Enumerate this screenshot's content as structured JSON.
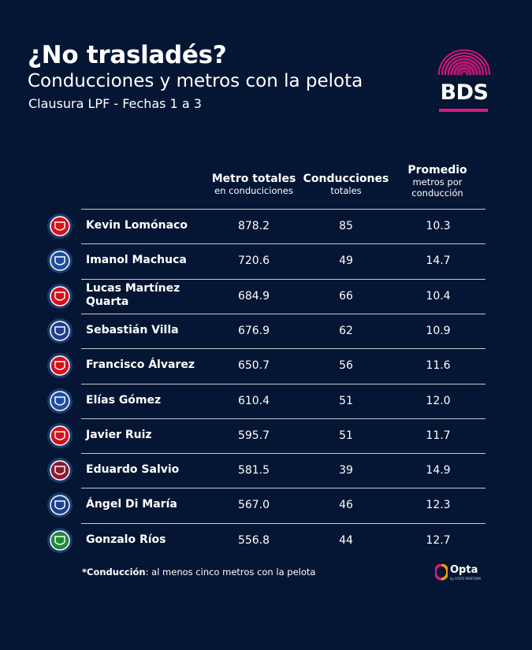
{
  "header": {
    "title": "¿No trasladés?",
    "subtitle": "Conducciones y metros con la pelota",
    "caption": "Clausura LPF - Fechas 1 a 3"
  },
  "brand": {
    "logo_text": "BDS",
    "accent": "#e0187f"
  },
  "columns": [
    {
      "title": "Metro totales",
      "sub1": "en conduciciones",
      "sub2": ""
    },
    {
      "title": "Conducciones",
      "sub1": "totales",
      "sub2": ""
    },
    {
      "title": "Promedio",
      "sub1": "metros por",
      "sub2": "conducción"
    }
  ],
  "chart_data": {
    "type": "table",
    "columns": [
      "Metro totales en conduciciones",
      "Conducciones totales",
      "Promedio metros por conducción"
    ],
    "rows": [
      {
        "player": [
          "Kevin Lomónaco"
        ],
        "meters": "878.2",
        "carries": "85",
        "avg": "10.3",
        "badge": "independiente-badge-icon",
        "color": "#d2121b"
      },
      {
        "player": [
          "Imanol Machuca"
        ],
        "meters": "720.6",
        "carries": "49",
        "avg": "14.7",
        "badge": "velez-badge-icon",
        "color": "#1d4fa0"
      },
      {
        "player": [
          "Lucas Martínez",
          "Quarta"
        ],
        "meters": "684.9",
        "carries": "66",
        "avg": "10.4",
        "badge": "river-plate-badge-icon",
        "color": "#d2121b"
      },
      {
        "player": [
          "Sebastián Villa"
        ],
        "meters": "676.9",
        "carries": "62",
        "avg": "10.9",
        "badge": "independiente-rivadavia-badge-icon",
        "color": "#1d3f8f"
      },
      {
        "player": [
          "Francisco Álvarez"
        ],
        "meters": "650.7",
        "carries": "56",
        "avg": "11.6",
        "badge": "argentinos-juniors-badge-icon",
        "color": "#d2121b"
      },
      {
        "player": [
          "Elías Gómez"
        ],
        "meters": "610.4",
        "carries": "51",
        "avg": "12.0",
        "badge": "velez-badge-icon",
        "color": "#1d4fa0"
      },
      {
        "player": [
          "Javier Ruiz"
        ],
        "meters": "595.7",
        "carries": "51",
        "avg": "11.7",
        "badge": "barracas-central-badge-icon",
        "color": "#d2121b"
      },
      {
        "player": [
          "Eduardo Salvio"
        ],
        "meters": "581.5",
        "carries": "39",
        "avg": "14.9",
        "badge": "lanus-badge-icon",
        "color": "#8c1a2e"
      },
      {
        "player": [
          "Ángel Di María"
        ],
        "meters": "567.0",
        "carries": "46",
        "avg": "12.3",
        "badge": "rosario-central-badge-icon",
        "color": "#1d3f8f"
      },
      {
        "player": [
          "Gonzalo Ríos"
        ],
        "meters": "556.8",
        "carries": "44",
        "avg": "12.7",
        "badge": "banfield-badge-icon",
        "color": "#1f8a3a"
      }
    ]
  },
  "footer": {
    "note_bold": "*Conducción",
    "note_rest": ": al menos cinco metros con la pelota",
    "opta_label": "Opta",
    "opta_sub": "by STATS PERFORM"
  }
}
